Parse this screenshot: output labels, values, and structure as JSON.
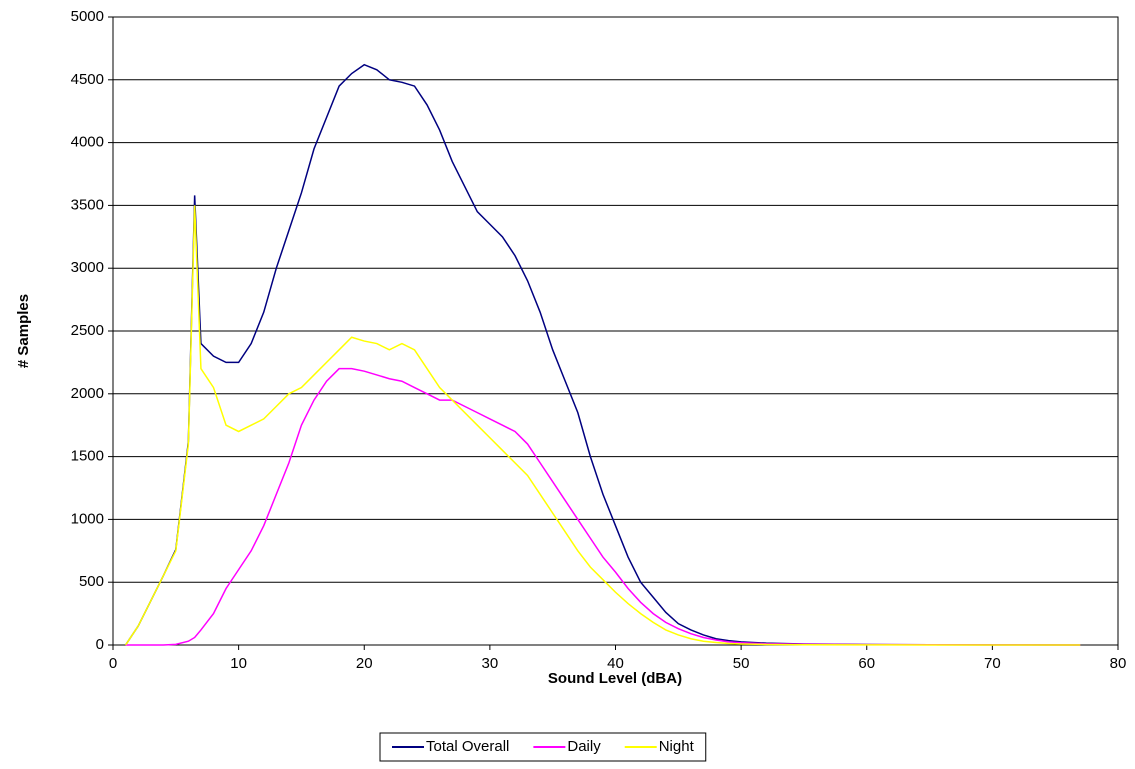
{
  "chart_data": {
    "type": "line",
    "xlabel": "Sound Level (dBA)",
    "ylabel": "# Samples",
    "x": [
      1,
      2,
      3,
      4,
      5,
      6,
      6.5,
      7,
      8,
      9,
      10,
      11,
      12,
      13,
      14,
      15,
      16,
      17,
      18,
      19,
      20,
      21,
      22,
      23,
      24,
      25,
      26,
      27,
      28,
      29,
      30,
      31,
      32,
      33,
      34,
      35,
      36,
      37,
      38,
      39,
      40,
      41,
      42,
      43,
      44,
      45,
      46,
      47,
      48,
      49,
      50,
      52,
      55,
      60,
      65,
      70,
      77
    ],
    "series": [
      {
        "name": "Total Overall",
        "color": "#000080",
        "values": [
          0,
          150,
          350,
          550,
          760,
          1620,
          3580,
          2400,
          2300,
          2250,
          2250,
          2400,
          2650,
          3000,
          3300,
          3600,
          3950,
          4200,
          4450,
          4550,
          4620,
          4580,
          4500,
          4480,
          4450,
          4300,
          4100,
          3850,
          3650,
          3450,
          3350,
          3250,
          3100,
          2900,
          2650,
          2350,
          2100,
          1850,
          1500,
          1200,
          950,
          700,
          500,
          380,
          260,
          170,
          120,
          80,
          50,
          35,
          25,
          15,
          8,
          4,
          2,
          1,
          0
        ]
      },
      {
        "name": "Daily",
        "color": "#ff00ff",
        "values": [
          0,
          0,
          0,
          0,
          5,
          30,
          60,
          120,
          250,
          450,
          600,
          750,
          950,
          1200,
          1450,
          1750,
          1950,
          2100,
          2200,
          2200,
          2180,
          2150,
          2120,
          2100,
          2050,
          2000,
          1950,
          1950,
          1900,
          1850,
          1800,
          1750,
          1700,
          1600,
          1450,
          1300,
          1150,
          1000,
          850,
          700,
          580,
          450,
          340,
          250,
          180,
          130,
          90,
          60,
          40,
          25,
          18,
          10,
          6,
          3,
          2,
          1,
          0
        ]
      },
      {
        "name": "Night",
        "color": "#ffff00",
        "values": [
          0,
          150,
          350,
          550,
          750,
          1600,
          3500,
          2200,
          2050,
          1750,
          1700,
          1750,
          1800,
          1900,
          2000,
          2050,
          2150,
          2250,
          2350,
          2450,
          2420,
          2400,
          2350,
          2400,
          2350,
          2200,
          2050,
          1950,
          1850,
          1750,
          1650,
          1550,
          1450,
          1350,
          1200,
          1050,
          900,
          750,
          620,
          520,
          420,
          330,
          250,
          180,
          120,
          80,
          50,
          30,
          20,
          12,
          8,
          4,
          2,
          1,
          0,
          0,
          0
        ]
      }
    ],
    "xlim": [
      0,
      80
    ],
    "xticks": [
      0,
      10,
      20,
      30,
      40,
      50,
      60,
      70,
      80
    ],
    "ylim": [
      0,
      5000
    ],
    "yticks": [
      0,
      500,
      1000,
      1500,
      2000,
      2500,
      3000,
      3500,
      4000,
      4500,
      5000
    ],
    "grid": true,
    "legend": "bottom"
  }
}
